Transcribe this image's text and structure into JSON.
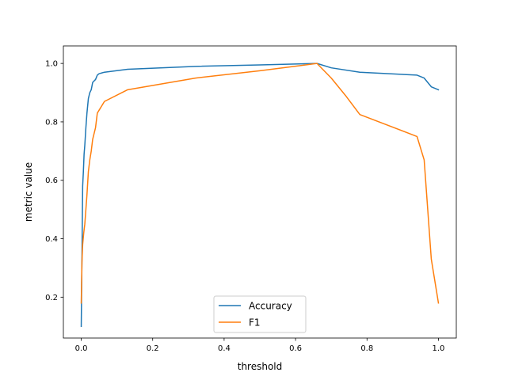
{
  "chart_data": {
    "type": "line",
    "title": "",
    "xlabel": "threshold",
    "ylabel": "metric value",
    "xlim": [
      -0.05,
      1.05
    ],
    "ylim": [
      0.06,
      1.06
    ],
    "xticks": [
      0.0,
      0.2,
      0.4,
      0.6,
      0.8,
      1.0
    ],
    "xtick_labels": [
      "0.0",
      "0.2",
      "0.4",
      "0.6",
      "0.8",
      "1.0"
    ],
    "yticks": [
      0.2,
      0.4,
      0.6,
      0.8,
      1.0
    ],
    "ytick_labels": [
      "0.2",
      "0.4",
      "0.6",
      "0.8",
      "1.0"
    ],
    "grid": false,
    "legend_position": "bottom-center",
    "series": [
      {
        "name": "Accuracy",
        "color": "#1f77b4",
        "x": [
          0.0,
          0.002,
          0.004,
          0.006,
          0.008,
          0.01,
          0.013,
          0.016,
          0.02,
          0.024,
          0.028,
          0.032,
          0.036,
          0.04,
          0.045,
          0.05,
          0.065,
          0.13,
          0.32,
          0.5,
          0.66,
          0.7,
          0.78,
          0.94,
          0.96,
          0.98,
          1.0
        ],
        "y": [
          0.1,
          0.33,
          0.58,
          0.63,
          0.69,
          0.72,
          0.78,
          0.83,
          0.88,
          0.9,
          0.91,
          0.935,
          0.94,
          0.945,
          0.96,
          0.965,
          0.97,
          0.98,
          0.99,
          0.995,
          1.0,
          0.985,
          0.97,
          0.96,
          0.95,
          0.92,
          0.91
        ]
      },
      {
        "name": "F1",
        "color": "#ff7f0e",
        "x": [
          0.0,
          0.002,
          0.004,
          0.007,
          0.01,
          0.013,
          0.016,
          0.02,
          0.024,
          0.028,
          0.032,
          0.036,
          0.04,
          0.045,
          0.05,
          0.065,
          0.13,
          0.32,
          0.5,
          0.66,
          0.7,
          0.74,
          0.78,
          0.94,
          0.96,
          0.98,
          1.0
        ],
        "y": [
          0.18,
          0.32,
          0.38,
          0.42,
          0.45,
          0.5,
          0.55,
          0.63,
          0.67,
          0.7,
          0.74,
          0.76,
          0.78,
          0.83,
          0.84,
          0.87,
          0.91,
          0.95,
          0.975,
          1.0,
          0.95,
          0.89,
          0.825,
          0.75,
          0.67,
          0.33,
          0.18
        ]
      }
    ]
  }
}
